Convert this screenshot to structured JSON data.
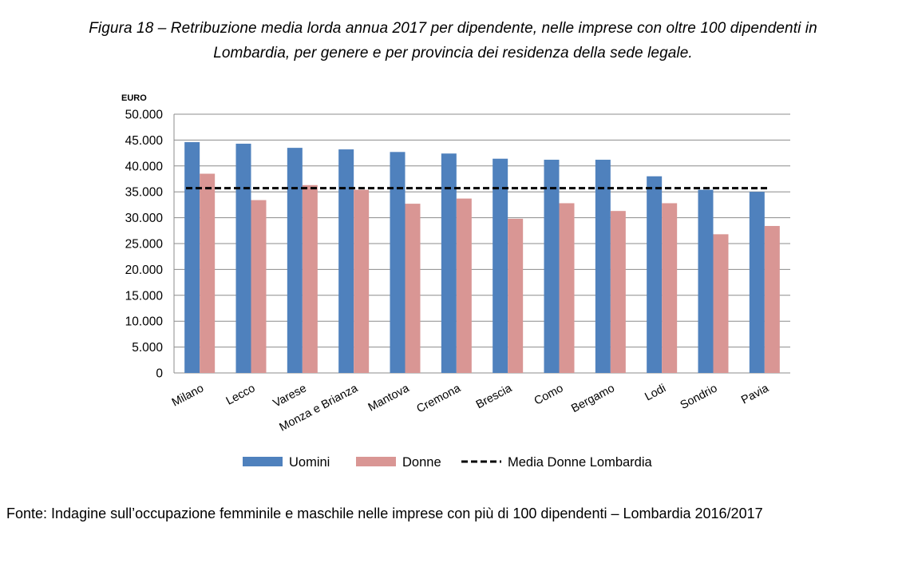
{
  "figure": {
    "title_line1": "Figura 18 – Retribuzione media lorda annua 2017 per dipendente, nelle imprese con oltre 100 dipendenti in",
    "title_line2": "Lombardia, per genere e per provincia dei residenza della sede legale.",
    "source": "Fonte: Indagine sull’occupazione femminile e maschile nelle imprese con più di 100 dipendenti – Lombardia 2016/2017"
  },
  "colors": {
    "uomini": "#4f81bd",
    "donne": "#d99694",
    "media": "#000000",
    "grid": "#8c8c8c"
  },
  "chart_data": {
    "type": "bar",
    "ylabel": "EURO",
    "xlabel": "",
    "ylim": [
      0,
      50000
    ],
    "yticks": [
      0,
      5000,
      10000,
      15000,
      20000,
      25000,
      30000,
      35000,
      40000,
      45000,
      50000
    ],
    "ytick_labels": [
      "0",
      "5.000",
      "10.000",
      "15.000",
      "20.000",
      "25.000",
      "30.000",
      "35.000",
      "40.000",
      "45.000",
      "50.000"
    ],
    "grid": true,
    "legend_position": "bottom",
    "categories": [
      "Milano",
      "Lecco",
      "Varese",
      "Monza e Brianza",
      "Mantova",
      "Cremona",
      "Brescia",
      "Como",
      "Bergamo",
      "Lodi",
      "Sondrio",
      "Pavia"
    ],
    "series": [
      {
        "name": "Uomini",
        "values": [
          44600,
          44300,
          43500,
          43200,
          42700,
          42400,
          41400,
          41200,
          41200,
          38000,
          35400,
          35000
        ]
      },
      {
        "name": "Donne",
        "values": [
          38500,
          33400,
          36300,
          35400,
          32700,
          33700,
          29800,
          32800,
          31300,
          32800,
          26800,
          28400
        ]
      }
    ],
    "reference_line": {
      "name": "Media Donne Lombardia",
      "value": 35700,
      "style": "dashed"
    }
  }
}
